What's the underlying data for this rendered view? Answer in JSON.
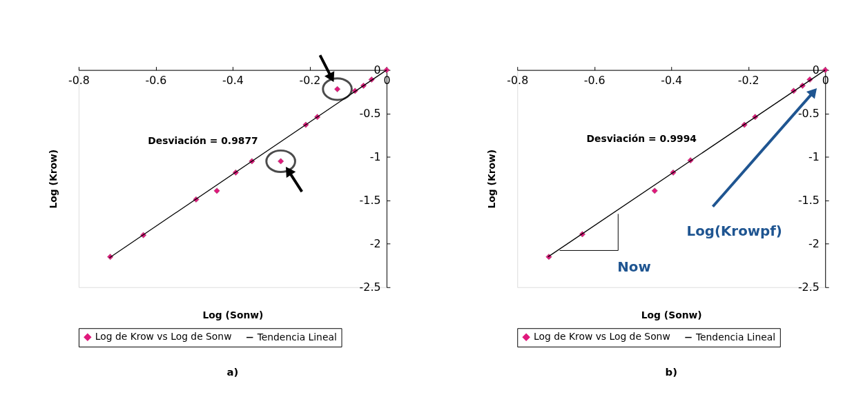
{
  "chart_data": [
    {
      "type": "scatter",
      "xlabel": "Log (Sonw)",
      "ylabel": "Log (Krow)",
      "xlim": [
        -0.8,
        0
      ],
      "xticks": [
        -0.8,
        -0.6,
        -0.4,
        -0.2,
        0
      ],
      "ylim": [
        -2.5,
        0
      ],
      "yticks": [
        0,
        -0.5,
        -1,
        -1.5,
        -2,
        -2.5
      ],
      "legend": "bottom",
      "grid": false,
      "line_style": "solid",
      "series": [
        {
          "name": "Log de Krow vs Log de Sonw",
          "marker": "diamond",
          "color": "#e0187c",
          "x": [
            -0.718,
            -0.632,
            -0.495,
            -0.441,
            -0.392,
            -0.35,
            -0.275,
            -0.21,
            -0.18,
            -0.128,
            -0.082,
            -0.06,
            -0.039,
            0
          ],
          "values": [
            -2.15,
            -1.9,
            -1.49,
            -1.39,
            -1.18,
            -1.05,
            -1.05,
            -0.63,
            -0.54,
            -0.22,
            -0.24,
            -0.18,
            -0.11,
            0
          ]
        },
        {
          "name": "Tendencia Lineal",
          "type": "line",
          "color": "#000000",
          "x": [
            -0.72,
            0
          ],
          "values": [
            -2.16,
            0
          ]
        }
      ],
      "annotations": [
        "Desviación = 0.9877",
        "a)"
      ]
    },
    {
      "type": "scatter",
      "xlabel": "Log (Sonw)",
      "ylabel": "Log (Krow)",
      "xlim": [
        -0.8,
        0
      ],
      "xticks": [
        -0.8,
        -0.6,
        -0.4,
        -0.2,
        0
      ],
      "ylim": [
        -2.5,
        0
      ],
      "yticks": [
        0,
        -0.5,
        -1,
        -1.5,
        -2,
        -2.5
      ],
      "legend": "bottom",
      "grid": false,
      "line_style": "solid",
      "series": [
        {
          "name": "Log de Krow vs Log de Sonw",
          "marker": "diamond",
          "color": "#e0187c",
          "x": [
            -0.718,
            -0.631,
            -0.443,
            -0.395,
            -0.35,
            -0.21,
            -0.182,
            -0.082,
            -0.059,
            -0.04,
            0
          ],
          "values": [
            -2.15,
            -1.89,
            -1.39,
            -1.18,
            -1.04,
            -0.63,
            -0.54,
            -0.24,
            -0.18,
            -0.11,
            0
          ]
        },
        {
          "name": "Tendencia Lineal",
          "type": "line",
          "color": "#000000",
          "x": [
            -0.72,
            0
          ],
          "values": [
            -2.15,
            0
          ]
        }
      ],
      "annotations": [
        "Desviación = 0.9994",
        "Log(Krowpf)",
        "Now",
        "b)"
      ]
    }
  ]
}
